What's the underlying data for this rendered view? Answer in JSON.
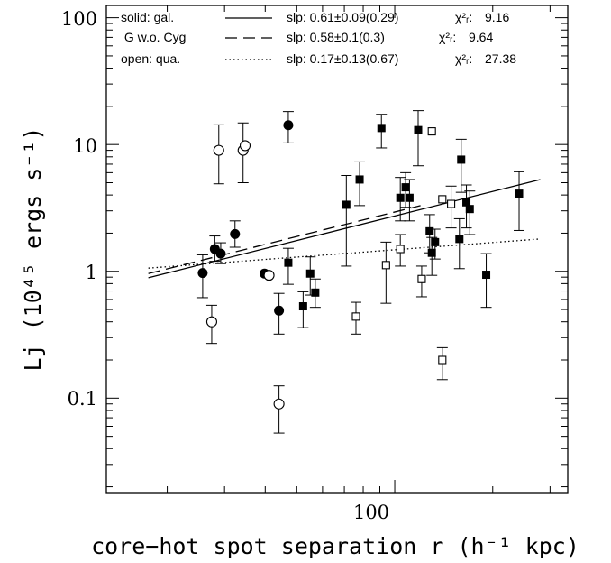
{
  "chart_data": {
    "type": "scatter",
    "xlabel": "core−hot spot separation r (h⁻¹ kpc)",
    "ylabel": "Lj (10⁴⁵ ergs s⁻¹)",
    "xscale": "log",
    "yscale": "log",
    "xlim": [
      13,
      340
    ],
    "ylim": [
      0.018,
      125
    ],
    "x_tick_labels": [
      "100"
    ],
    "y_tick_labels": [
      "100",
      "10",
      "1",
      "0.1"
    ],
    "legend_placement": "top",
    "legend": [
      {
        "label": "solid: gal.",
        "line_style": "solid",
        "fit": "slp: 0.61±0.09(0.29)",
        "chi_label": "χ²ᵣ:",
        "chi_value": "9.16"
      },
      {
        "label": " G w.o. Cyg",
        "line_style": "dashed",
        "fit": "slp: 0.58±0.1(0.3)",
        "chi_label": "χ²ᵣ:",
        "chi_value": "9.64"
      },
      {
        "label": "open: qua.",
        "line_style": "dotted",
        "fit": "slp: 0.17±0.13(0.67)",
        "chi_label": "χ²ᵣ:",
        "chi_value": "27.38"
      }
    ],
    "series": [
      {
        "marker": "filled-circle",
        "points": [
          {
            "x": 25.7,
            "y": 0.97,
            "lo": 0.62,
            "hi": 1.35
          },
          {
            "x": 28.0,
            "y": 1.5,
            "lo": 1.2,
            "hi": 1.9
          },
          {
            "x": 29.2,
            "y": 1.38,
            "lo": 1.15,
            "hi": 1.68
          },
          {
            "x": 32.3,
            "y": 1.97,
            "lo": 1.55,
            "hi": 2.5
          },
          {
            "x": 39.8,
            "y": 0.96
          },
          {
            "x": 44.1,
            "y": 0.49,
            "lo": 0.32,
            "hi": 0.67
          },
          {
            "x": 47.1,
            "y": 14.2,
            "lo": 10.3,
            "hi": 18.2
          }
        ]
      },
      {
        "marker": "open-circle",
        "points": [
          {
            "x": 27.4,
            "y": 0.4,
            "lo": 0.27,
            "hi": 0.54
          },
          {
            "x": 28.8,
            "y": 9.0,
            "lo": 4.9,
            "hi": 14.3
          },
          {
            "x": 34.2,
            "y": 9.0,
            "lo": 5.0,
            "hi": 14.8
          },
          {
            "x": 34.7,
            "y": 9.8
          },
          {
            "x": 41.1,
            "y": 0.93
          },
          {
            "x": 44.1,
            "y": 0.09,
            "lo": 0.053,
            "hi": 0.125
          }
        ]
      },
      {
        "marker": "filled-square",
        "points": [
          {
            "x": 47.1,
            "y": 1.17,
            "lo": 0.79,
            "hi": 1.52
          },
          {
            "x": 52.3,
            "y": 0.53,
            "lo": 0.36,
            "hi": 0.69
          },
          {
            "x": 55.0,
            "y": 0.96,
            "lo": 0.65,
            "hi": 1.3
          },
          {
            "x": 57.0,
            "y": 0.68,
            "lo": 0.52,
            "hi": 0.87
          },
          {
            "x": 71.0,
            "y": 3.35,
            "lo": 1.1,
            "hi": 5.7
          },
          {
            "x": 78.0,
            "y": 5.3,
            "lo": 3.3,
            "hi": 7.3
          },
          {
            "x": 91.0,
            "y": 13.5,
            "lo": 9.4,
            "hi": 17.3
          },
          {
            "x": 104.0,
            "y": 3.8,
            "lo": 2.5,
            "hi": 5.5
          },
          {
            "x": 108.0,
            "y": 4.6,
            "lo": 3.2,
            "hi": 6.0
          },
          {
            "x": 111.0,
            "y": 3.8,
            "lo": 2.5,
            "hi": 5.3
          },
          {
            "x": 118.0,
            "y": 13.0,
            "lo": 6.8,
            "hi": 18.5
          },
          {
            "x": 128.0,
            "y": 2.07,
            "lo": 1.4,
            "hi": 2.8
          },
          {
            "x": 130.0,
            "y": 1.4,
            "lo": 0.93,
            "hi": 1.85
          },
          {
            "x": 133.0,
            "y": 1.7,
            "lo": 1.25,
            "hi": 2.15
          },
          {
            "x": 158.0,
            "y": 1.8,
            "lo": 1.05,
            "hi": 2.6
          },
          {
            "x": 160.0,
            "y": 7.6,
            "lo": 4.2,
            "hi": 11.0
          },
          {
            "x": 166.0,
            "y": 3.5,
            "lo": 2.2,
            "hi": 4.8
          },
          {
            "x": 170.0,
            "y": 3.1,
            "lo": 1.95,
            "hi": 4.3
          },
          {
            "x": 191.0,
            "y": 0.94,
            "lo": 0.52,
            "hi": 1.38
          },
          {
            "x": 241.0,
            "y": 4.1,
            "lo": 2.1,
            "hi": 6.1
          }
        ]
      },
      {
        "marker": "open-square",
        "points": [
          {
            "x": 76.0,
            "y": 0.44,
            "lo": 0.32,
            "hi": 0.57
          },
          {
            "x": 94.0,
            "y": 1.12,
            "lo": 0.56,
            "hi": 1.7
          },
          {
            "x": 104.0,
            "y": 1.5,
            "lo": 1.1,
            "hi": 1.95
          },
          {
            "x": 121.0,
            "y": 0.87,
            "lo": 0.63,
            "hi": 1.1
          },
          {
            "x": 130.0,
            "y": 12.7
          },
          {
            "x": 140.0,
            "y": 0.2,
            "lo": 0.14,
            "hi": 0.25
          },
          {
            "x": 140.0,
            "y": 3.7
          },
          {
            "x": 149.0,
            "y": 3.4,
            "lo": 2.2,
            "hi": 4.7
          }
        ]
      }
    ],
    "fits": [
      {
        "style": "solid",
        "x": [
          17.5,
          280
        ],
        "y": [
          0.89,
          5.3
        ]
      },
      {
        "style": "dashed",
        "x": [
          17.5,
          120
        ],
        "y": [
          0.96,
          3.3
        ]
      },
      {
        "style": "dotted",
        "x": [
          17.5,
          280
        ],
        "y": [
          1.06,
          1.8
        ]
      }
    ]
  }
}
